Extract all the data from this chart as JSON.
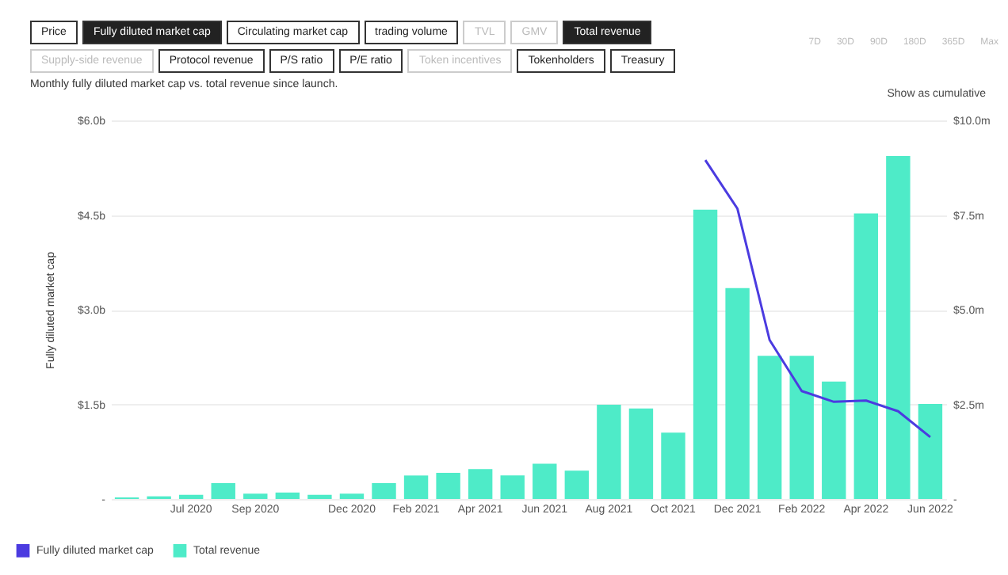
{
  "chart_data": {
    "type": "bar",
    "subtitle": "Monthly fully diluted market cap vs. total revenue since launch.",
    "ylabel": "Fully diluted market cap",
    "categories": [
      null,
      null,
      "Jul 2020",
      null,
      "Sep 2020",
      null,
      null,
      "Dec 2020",
      null,
      "Feb 2021",
      null,
      "Apr 2021",
      null,
      "Jun 2021",
      null,
      "Aug 2021",
      null,
      "Oct 2021",
      null,
      "Dec 2021",
      null,
      "Feb 2022",
      null,
      "Apr 2022",
      null,
      "Jun 2022"
    ],
    "series": [
      {
        "name": "Fully diluted market cap",
        "type": "line",
        "axis": "y",
        "color": "#4b3be0",
        "values": [
          null,
          null,
          null,
          null,
          null,
          null,
          null,
          null,
          null,
          null,
          null,
          null,
          null,
          null,
          null,
          null,
          null,
          null,
          5.37,
          4.6,
          2.52,
          1.71,
          1.54,
          1.56,
          1.39,
          0.98
        ]
      },
      {
        "name": "Total revenue",
        "axis": "y2",
        "color": "#4eebc8",
        "values": [
          0.04,
          0.07,
          0.11,
          0.42,
          0.14,
          0.17,
          0.11,
          0.14,
          0.42,
          0.62,
          0.69,
          0.79,
          0.62,
          0.93,
          0.75,
          2.49,
          2.39,
          1.75,
          7.64,
          5.57,
          3.78,
          3.78,
          3.1,
          7.54,
          9.06,
          2.51
        ]
      }
    ],
    "ylim": [
      0,
      6
    ],
    "yticks": [
      {
        "value": 0,
        "label": "-"
      },
      {
        "value": 1.5,
        "label": "$1.5b"
      },
      {
        "value": 3,
        "label": "$3.0b"
      },
      {
        "value": 4.5,
        "label": "$4.5b"
      },
      {
        "value": 6,
        "label": "$6.0b"
      }
    ],
    "y2lim": [
      0,
      10
    ],
    "y2ticks": [
      {
        "value": 0,
        "label": "-"
      },
      {
        "value": 2.5,
        "label": "$2.5m"
      },
      {
        "value": 5,
        "label": "$5.0m"
      },
      {
        "value": 7.5,
        "label": "$7.5m"
      },
      {
        "value": 10,
        "label": "$10.0m"
      }
    ],
    "grid": "y",
    "legend": "bottom left",
    "marker": "none",
    "annotations": [
      "Price",
      "Fully diluted market cap",
      "Circulating market cap",
      "trading volume",
      "TVL",
      "GMV",
      "Total revenue",
      "Supply-side revenue",
      "Protocol revenue",
      "P/S ratio",
      "P/E ratio",
      "Token incentives",
      "Tokenholders",
      "Treasury",
      "7D",
      "30D",
      "90D",
      "180D",
      "365D",
      "Max",
      "Show as cumulative"
    ]
  }
}
